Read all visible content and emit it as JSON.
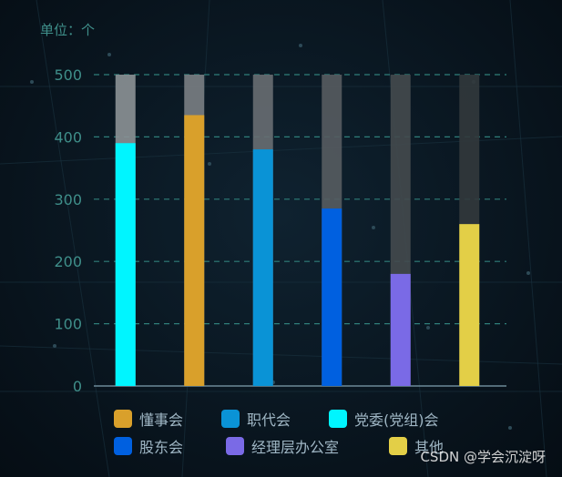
{
  "unit_label": "单位：个",
  "watermark": "CSDN @学会沉淀呀",
  "chart_data": {
    "type": "bar",
    "ylim": [
      0,
      500
    ],
    "yticks": [
      0,
      100,
      200,
      300,
      400,
      500
    ],
    "ylabel": "",
    "xlabel": "",
    "grid": true,
    "legend_position": "bottom",
    "bars": [
      {
        "value": 390,
        "color": "#00f5ff"
      },
      {
        "value": 435,
        "color": "#d9a02b"
      },
      {
        "value": 380,
        "color": "#0a93d6"
      },
      {
        "value": 285,
        "color": "#0060e0"
      },
      {
        "value": 180,
        "color": "#7a6ae6"
      },
      {
        "value": 260,
        "color": "#e3cf47"
      }
    ]
  },
  "legend": [
    {
      "label": "懂事会",
      "color": "#d9a02b"
    },
    {
      "label": "职代会",
      "color": "#0a93d6"
    },
    {
      "label": "党委(党组)会",
      "color": "#00f5ff"
    },
    {
      "label": "股东会",
      "color": "#0060e0"
    },
    {
      "label": "经理层办公室",
      "color": "#7a6ae6"
    },
    {
      "label": "其他",
      "color": "#e3cf47"
    }
  ]
}
